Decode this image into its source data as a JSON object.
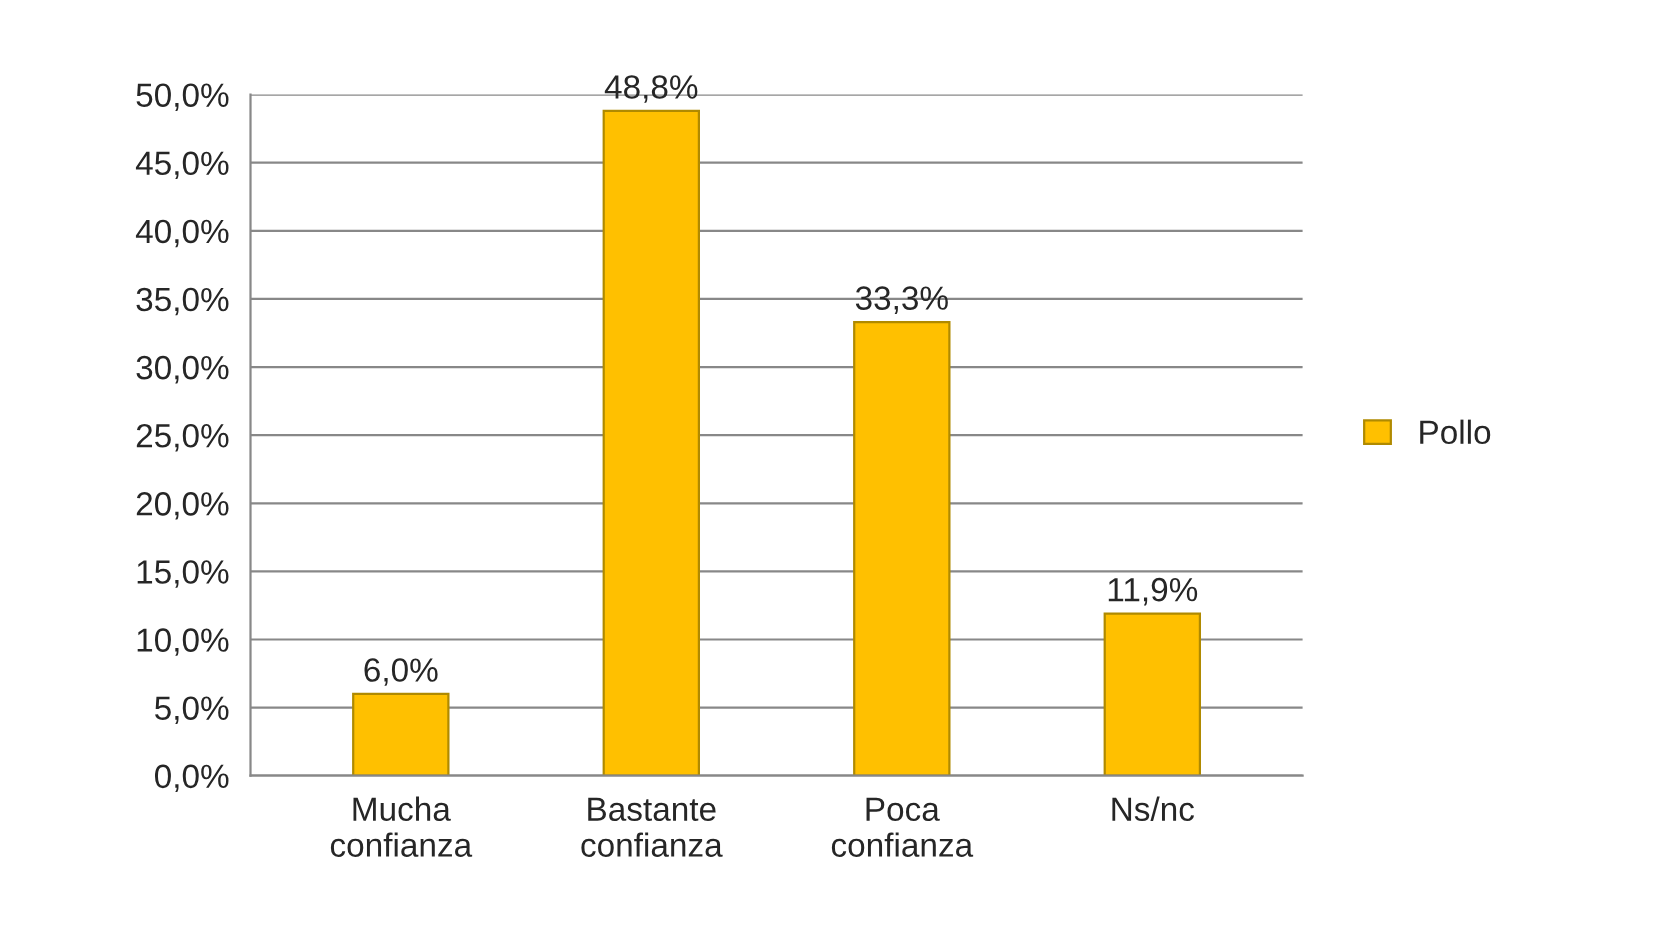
{
  "chart_data": {
    "type": "bar",
    "categories": [
      "Mucha\nconfianza",
      "Bastante\nconfianza",
      "Poca\nconfianza",
      "Ns/nc"
    ],
    "series": [
      {
        "name": "Pollo",
        "color": "#ffc000",
        "values": [
          6.0,
          48.8,
          33.3,
          11.9
        ],
        "value_labels": [
          "6,0%",
          "48,8%",
          "33,3%",
          "11,9%"
        ]
      }
    ],
    "ylim": [
      0,
      50
    ],
    "yticks": [
      {
        "value": 0,
        "label": "0,0%"
      },
      {
        "value": 5,
        "label": "5,0%"
      },
      {
        "value": 10,
        "label": "10,0%"
      },
      {
        "value": 15,
        "label": "15,0%"
      },
      {
        "value": 20,
        "label": "20,0%"
      },
      {
        "value": 25,
        "label": "25,0%"
      },
      {
        "value": 30,
        "label": "30,0%"
      },
      {
        "value": 35,
        "label": "35,0%"
      },
      {
        "value": 40,
        "label": "40,0%"
      },
      {
        "value": 45,
        "label": "45,0%"
      },
      {
        "value": 50,
        "label": "50,0%"
      }
    ],
    "grid": "y",
    "legend": "right"
  }
}
